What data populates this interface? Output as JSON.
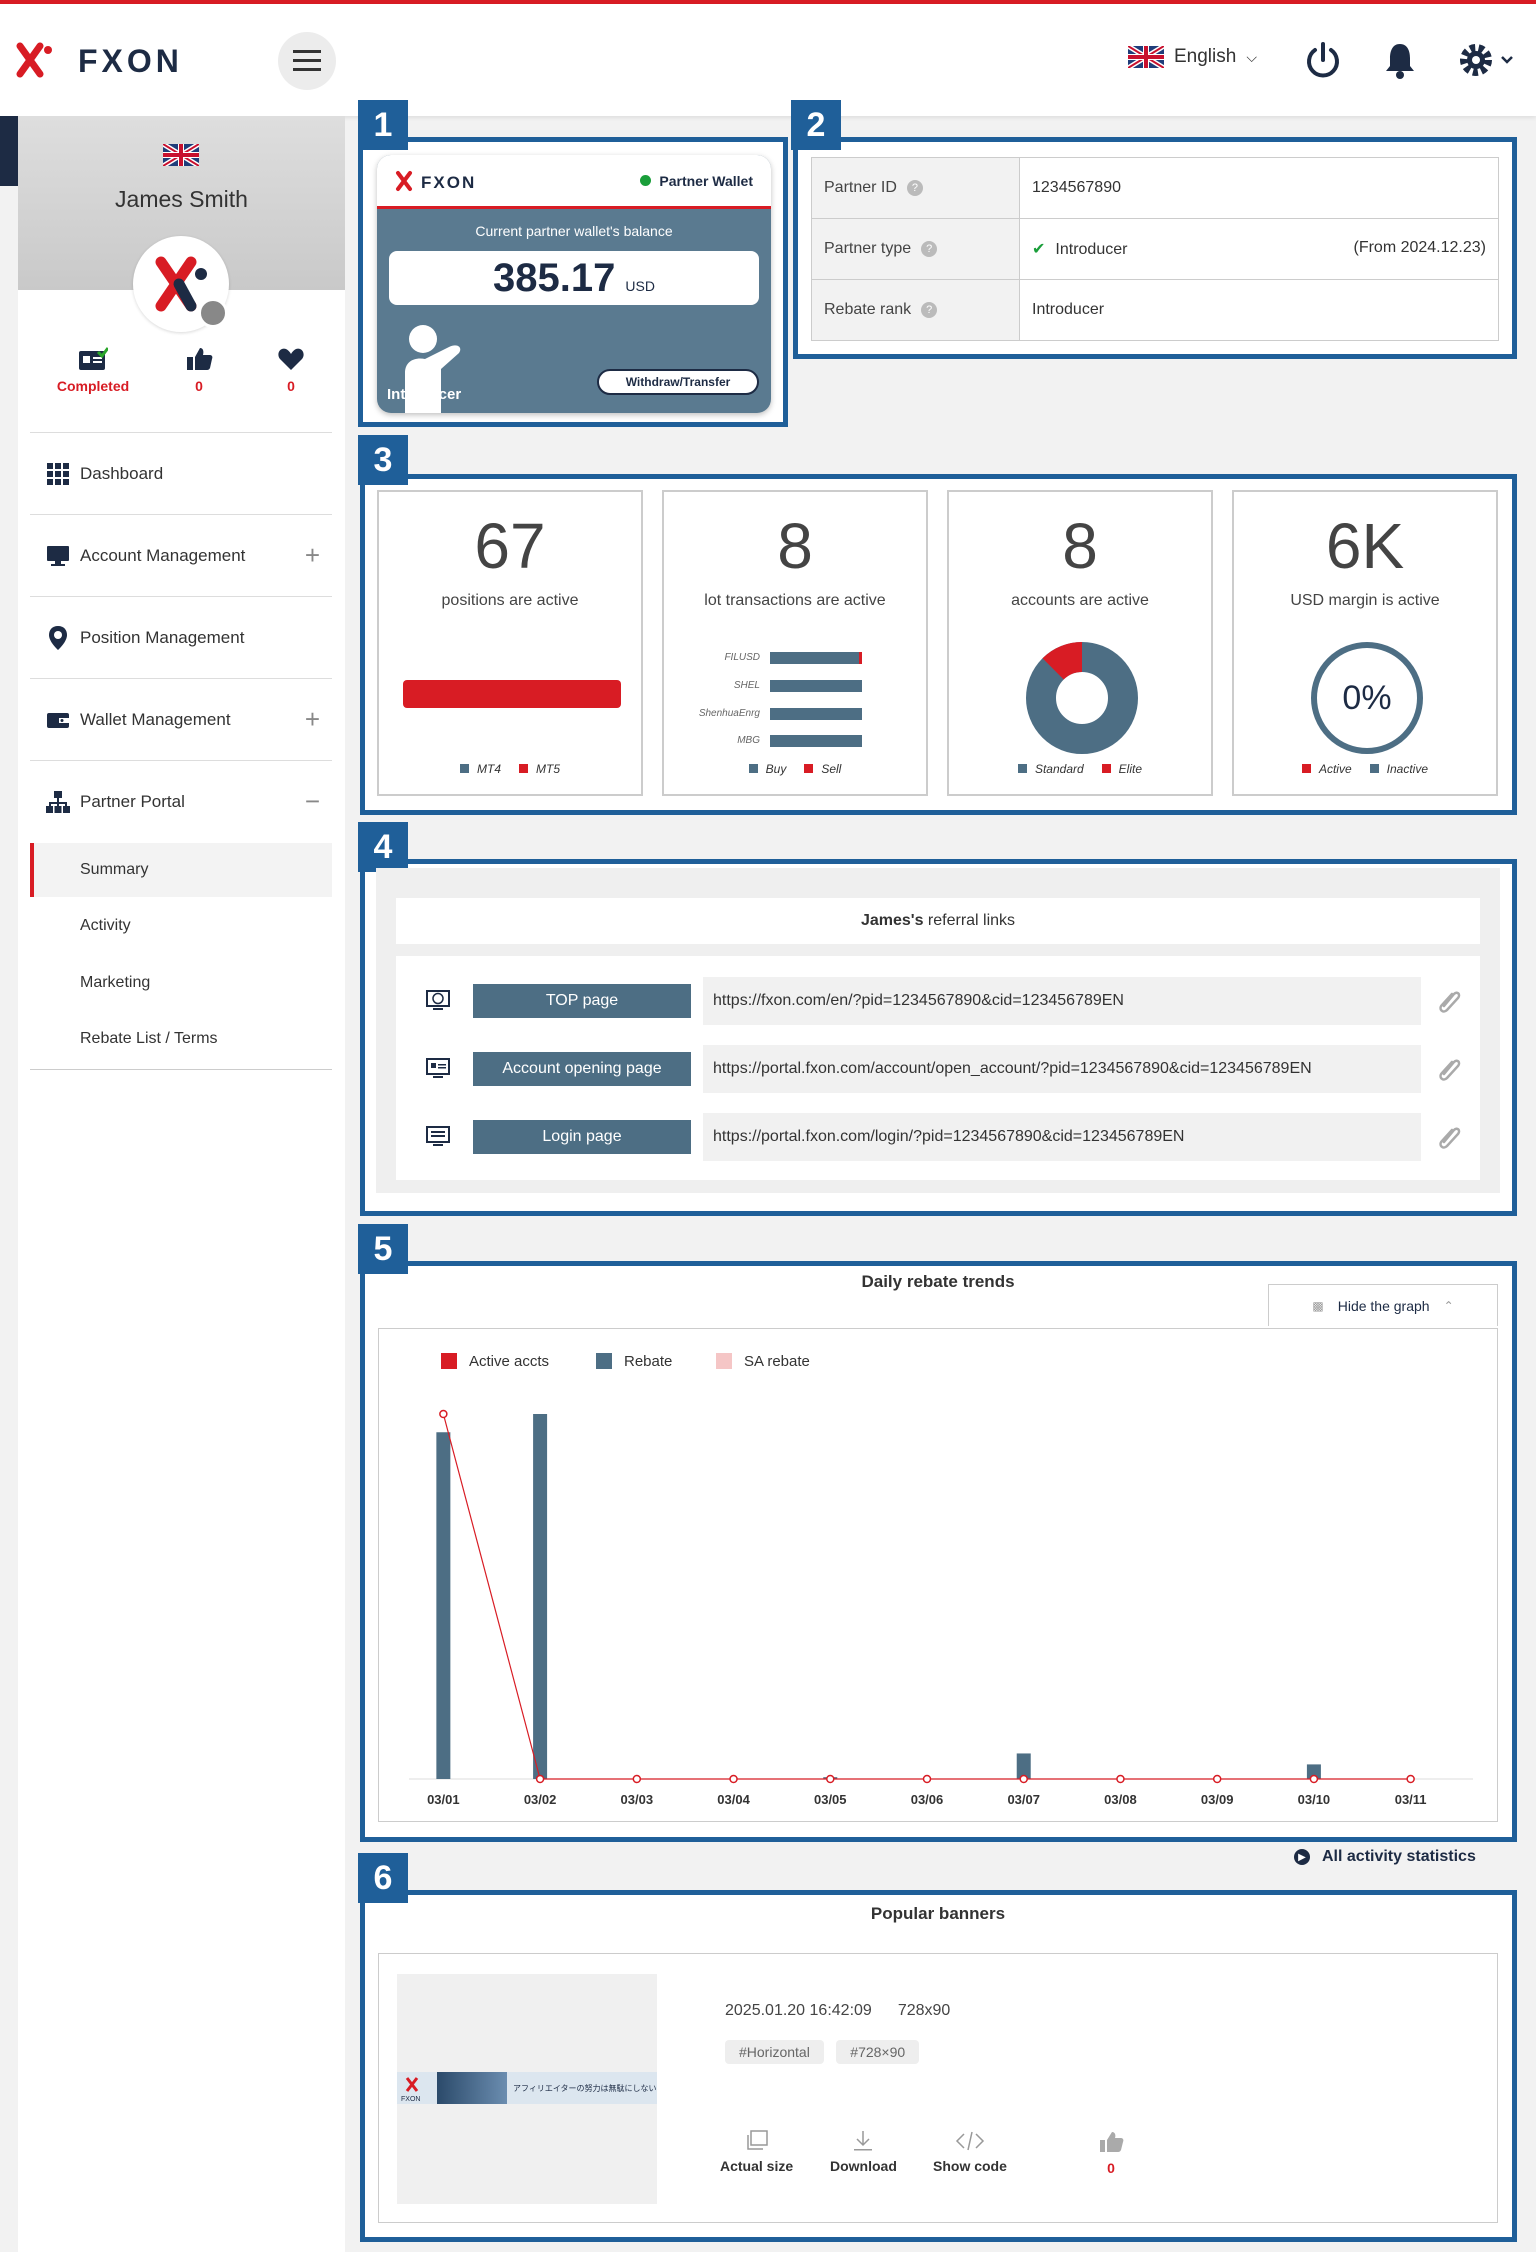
{
  "header": {
    "language": "English"
  },
  "profile": {
    "name": "James Smith",
    "completed": "Completed",
    "likes": "0",
    "favorites": "0"
  },
  "nav": {
    "dashboard": "Dashboard",
    "account_management": "Account Management",
    "position_management": "Position Management",
    "wallet_management": "Wallet Management",
    "partner_portal": "Partner Portal",
    "sub": [
      "Summary",
      "Activity",
      "Marketing",
      "Rebate List / Terms"
    ]
  },
  "section_numbers": [
    "1",
    "2",
    "3",
    "4",
    "5",
    "6"
  ],
  "wallet": {
    "title": "Partner Wallet",
    "label": "Current partner wallet's balance",
    "balance": "385.17",
    "currency": "USD",
    "button": "Withdraw/Transfer",
    "role": "Introducer"
  },
  "partner": {
    "id_label": "Partner ID",
    "id_value": "1234567890",
    "type_label": "Partner type",
    "type_value": "Introducer",
    "type_since": "(From 2024.12.23)",
    "rank_label": "Rebate rank",
    "rank_value": "Introducer"
  },
  "summary_cards": [
    {
      "value": "67",
      "caption": "positions are active",
      "legend": [
        "MT4",
        "MT5"
      ]
    },
    {
      "value": "8",
      "caption": "lot transactions are active",
      "legend": [
        "Buy",
        "Sell"
      ],
      "rows": [
        "FILUSD",
        "SHEL",
        "ShenhuaEnrg",
        "MBG"
      ]
    },
    {
      "value": "8",
      "caption": "accounts are active",
      "legend": [
        "Standard",
        "Elite"
      ]
    },
    {
      "value": "6K",
      "caption": "USD margin is active",
      "legend": [
        "Active",
        "Inactive"
      ],
      "ring": "0%"
    }
  ],
  "referral": {
    "owner": "James's",
    "title": "referral links",
    "links": [
      {
        "label": "TOP page",
        "url": "https://fxon.com/en/?pid=1234567890&cid=123456789EN"
      },
      {
        "label": "Account opening page",
        "url": "https://portal.fxon.com/account/open_account/?pid=1234567890&cid=123456789EN"
      },
      {
        "label": "Login page",
        "url": "https://portal.fxon.com/login/?pid=1234567890&cid=123456789EN"
      }
    ]
  },
  "trends": {
    "title": "Daily rebate trends",
    "hide_label": "Hide the graph",
    "all_stats": "All activity statistics"
  },
  "chart_data": {
    "type": "bar",
    "categories": [
      "03/01",
      "03/02",
      "03/03",
      "03/04",
      "03/05",
      "03/06",
      "03/07",
      "03/08",
      "03/09",
      "03/10",
      "03/11"
    ],
    "series": [
      {
        "name": "Active accts",
        "type": "line",
        "color": "#d81c24",
        "values": [
          100,
          0,
          0,
          0,
          0,
          0,
          0,
          0,
          0,
          0,
          0
        ]
      },
      {
        "name": "Rebate",
        "type": "bar",
        "color": "#4d6e84",
        "values": [
          95,
          100,
          0,
          0,
          0.5,
          0,
          7,
          0,
          0,
          4,
          0
        ]
      },
      {
        "name": "SA rebate",
        "type": "bar",
        "color": "#f5c6c6",
        "values": [
          0,
          0,
          0,
          0,
          0,
          0,
          0,
          0,
          0,
          0,
          0
        ]
      }
    ],
    "grid": false,
    "legend": "top-left"
  },
  "banners": {
    "title": "Popular banners",
    "date": "2025.01.20 16:42:09",
    "size": "728x90",
    "tags": [
      "#Horizontal",
      "#728×90"
    ],
    "actions": [
      "Actual size",
      "Download",
      "Show code"
    ],
    "likes": "0",
    "banner_text": "アフィリエイターの努力は無駄にしない"
  }
}
